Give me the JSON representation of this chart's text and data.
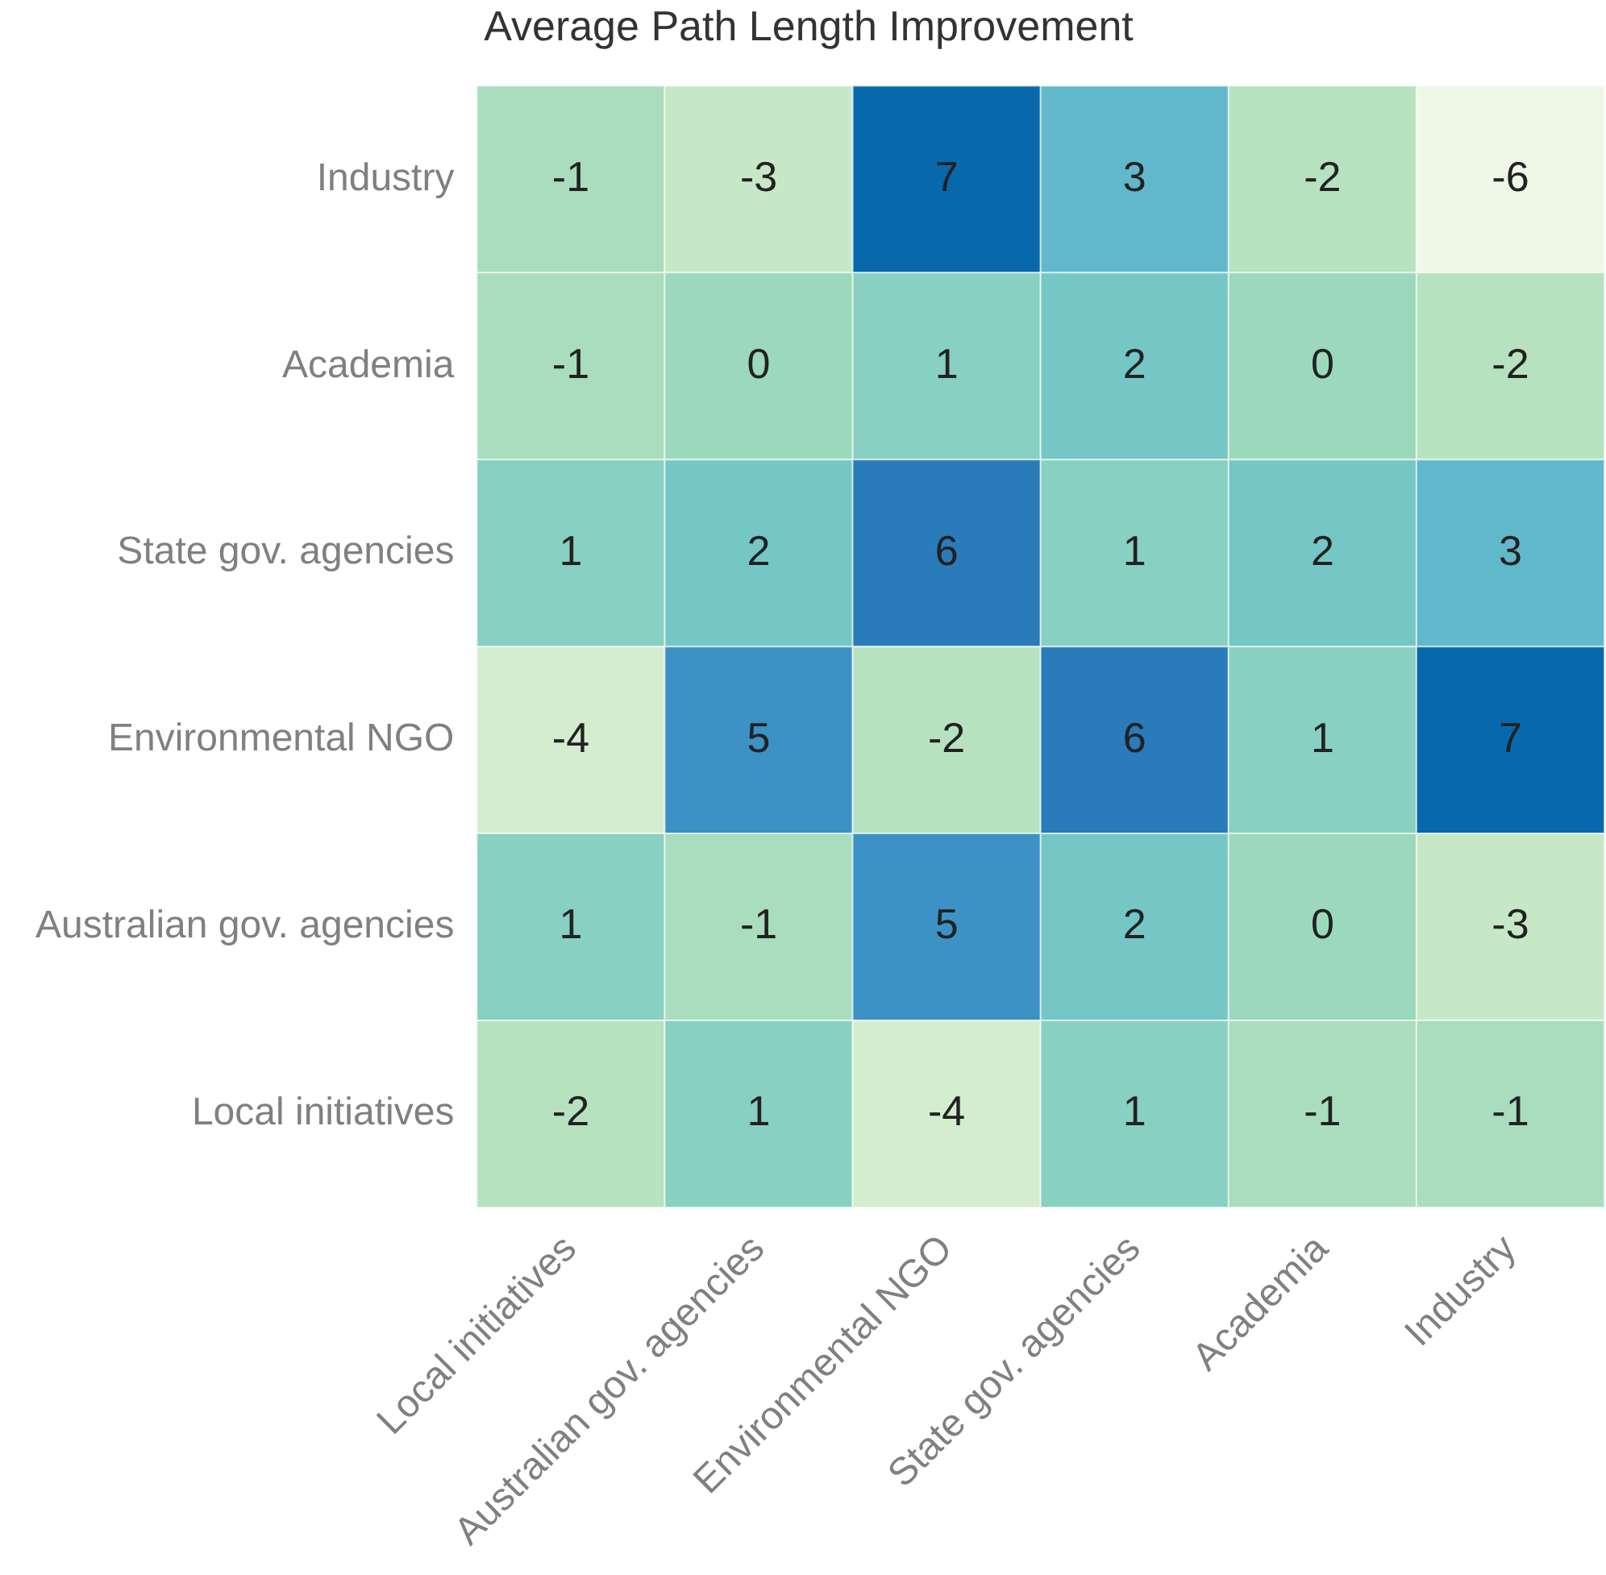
{
  "chart_data": {
    "type": "heatmap",
    "title": "Average Path Length Improvement",
    "categories": [
      "Local initiatives",
      "Australian gov. agencies",
      "Environmental NGO",
      "State gov. agencies",
      "Academia",
      "Industry"
    ],
    "y_categories": [
      "Industry",
      "Academia",
      "State gov. agencies",
      "Environmental NGO",
      "Australian gov. agencies",
      "Local initiatives"
    ],
    "cells": [
      [
        -1,
        -3,
        7,
        3,
        -2,
        -6
      ],
      [
        -1,
        0,
        1,
        2,
        0,
        -2
      ],
      [
        1,
        2,
        6,
        1,
        2,
        3
      ],
      [
        -4,
        5,
        -2,
        6,
        1,
        7
      ],
      [
        1,
        -1,
        5,
        2,
        0,
        -3
      ],
      [
        -2,
        1,
        -4,
        1,
        -1,
        -1
      ]
    ],
    "data_labels": true
  }
}
